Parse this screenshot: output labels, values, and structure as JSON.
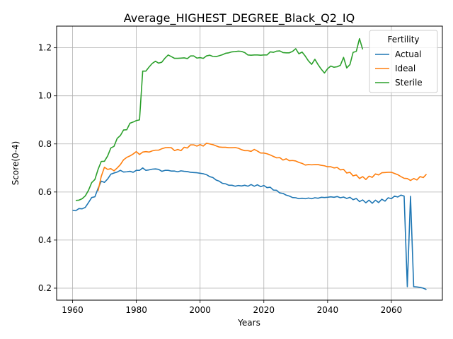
{
  "chart_data": {
    "type": "line",
    "title": "Average_HIGHEST_DEGREE_Black_Q2_IQ",
    "xlabel": "Years",
    "ylabel": "Score(0-4)",
    "xlim": [
      1955,
      2076
    ],
    "ylim": [
      0.15,
      1.29
    ],
    "x_ticks": [
      1960,
      1980,
      2000,
      2020,
      2040,
      2060
    ],
    "y_ticks": [
      0.2,
      0.4,
      0.6,
      0.8,
      1.0,
      1.2
    ],
    "x_tick_labels": [
      "1960",
      "1980",
      "2000",
      "2020",
      "2040",
      "2060"
    ],
    "y_tick_labels": [
      "0.2",
      "0.4",
      "0.6",
      "0.8",
      "1.0",
      "1.2"
    ],
    "grid": true,
    "legend": {
      "title": "Fertility",
      "placement": "upper right"
    },
    "series": [
      {
        "name": "Actual",
        "color": "#1f77b4",
        "points": [
          [
            1960,
            0.524
          ],
          [
            1961,
            0.522
          ],
          [
            1962,
            0.531
          ],
          [
            1963,
            0.53
          ],
          [
            1964,
            0.536
          ],
          [
            1965,
            0.556
          ],
          [
            1966,
            0.577
          ],
          [
            1967,
            0.58
          ],
          [
            1968,
            0.615
          ],
          [
            1969,
            0.645
          ],
          [
            1970,
            0.64
          ],
          [
            1971,
            0.654
          ],
          [
            1972,
            0.674
          ],
          [
            1973,
            0.679
          ],
          [
            1974,
            0.683
          ],
          [
            1975,
            0.69
          ],
          [
            1976,
            0.683
          ],
          [
            1977,
            0.684
          ],
          [
            1978,
            0.686
          ],
          [
            1979,
            0.682
          ],
          [
            1980,
            0.69
          ],
          [
            1981,
            0.69
          ],
          [
            1982,
            0.7
          ],
          [
            1983,
            0.69
          ],
          [
            1984,
            0.692
          ],
          [
            1985,
            0.695
          ],
          [
            1986,
            0.696
          ],
          [
            1987,
            0.694
          ],
          [
            1988,
            0.686
          ],
          [
            1989,
            0.69
          ],
          [
            1990,
            0.69
          ],
          [
            1991,
            0.687
          ],
          [
            1992,
            0.687
          ],
          [
            1993,
            0.684
          ],
          [
            1994,
            0.688
          ],
          [
            1995,
            0.686
          ],
          [
            1996,
            0.685
          ],
          [
            1997,
            0.682
          ],
          [
            1998,
            0.681
          ],
          [
            1999,
            0.68
          ],
          [
            2000,
            0.678
          ],
          [
            2001,
            0.676
          ],
          [
            2002,
            0.672
          ],
          [
            2003,
            0.664
          ],
          [
            2004,
            0.66
          ],
          [
            2005,
            0.65
          ],
          [
            2006,
            0.645
          ],
          [
            2007,
            0.636
          ],
          [
            2008,
            0.634
          ],
          [
            2009,
            0.628
          ],
          [
            2010,
            0.628
          ],
          [
            2011,
            0.624
          ],
          [
            2012,
            0.627
          ],
          [
            2013,
            0.625
          ],
          [
            2014,
            0.628
          ],
          [
            2015,
            0.624
          ],
          [
            2016,
            0.631
          ],
          [
            2017,
            0.624
          ],
          [
            2018,
            0.63
          ],
          [
            2019,
            0.622
          ],
          [
            2020,
            0.627
          ],
          [
            2021,
            0.618
          ],
          [
            2022,
            0.62
          ],
          [
            2023,
            0.608
          ],
          [
            2024,
            0.607
          ],
          [
            2025,
            0.596
          ],
          [
            2026,
            0.594
          ],
          [
            2027,
            0.587
          ],
          [
            2028,
            0.583
          ],
          [
            2029,
            0.577
          ],
          [
            2030,
            0.576
          ],
          [
            2031,
            0.572
          ],
          [
            2032,
            0.574
          ],
          [
            2033,
            0.572
          ],
          [
            2034,
            0.575
          ],
          [
            2035,
            0.572
          ],
          [
            2036,
            0.576
          ],
          [
            2037,
            0.574
          ],
          [
            2038,
            0.578
          ],
          [
            2039,
            0.577
          ],
          [
            2040,
            0.578
          ],
          [
            2041,
            0.58
          ],
          [
            2042,
            0.578
          ],
          [
            2043,
            0.581
          ],
          [
            2044,
            0.576
          ],
          [
            2045,
            0.579
          ],
          [
            2046,
            0.573
          ],
          [
            2047,
            0.578
          ],
          [
            2048,
            0.568
          ],
          [
            2049,
            0.573
          ],
          [
            2050,
            0.56
          ],
          [
            2051,
            0.567
          ],
          [
            2052,
            0.555
          ],
          [
            2053,
            0.566
          ],
          [
            2054,
            0.553
          ],
          [
            2055,
            0.566
          ],
          [
            2056,
            0.556
          ],
          [
            2057,
            0.57
          ],
          [
            2058,
            0.562
          ],
          [
            2059,
            0.576
          ],
          [
            2060,
            0.572
          ],
          [
            2061,
            0.583
          ],
          [
            2062,
            0.579
          ],
          [
            2063,
            0.587
          ],
          [
            2064,
            0.583
          ],
          [
            2065,
            0.206
          ],
          [
            2066,
            0.582
          ],
          [
            2067,
            0.206
          ],
          [
            2068,
            0.205
          ],
          [
            2069,
            0.203
          ],
          [
            2070,
            0.2
          ],
          [
            2071,
            0.194
          ]
        ]
      },
      {
        "name": "Ideal",
        "color": "#ff7f0e",
        "points": [
          [
            1968,
            0.605
          ],
          [
            1969,
            0.665
          ],
          [
            1970,
            0.703
          ],
          [
            1971,
            0.694
          ],
          [
            1972,
            0.697
          ],
          [
            1973,
            0.688
          ],
          [
            1974,
            0.7
          ],
          [
            1975,
            0.714
          ],
          [
            1976,
            0.734
          ],
          [
            1977,
            0.744
          ],
          [
            1978,
            0.75
          ],
          [
            1979,
            0.758
          ],
          [
            1980,
            0.768
          ],
          [
            1981,
            0.756
          ],
          [
            1982,
            0.766
          ],
          [
            1983,
            0.768
          ],
          [
            1984,
            0.766
          ],
          [
            1985,
            0.771
          ],
          [
            1986,
            0.774
          ],
          [
            1987,
            0.774
          ],
          [
            1988,
            0.78
          ],
          [
            1989,
            0.784
          ],
          [
            1990,
            0.785
          ],
          [
            1991,
            0.784
          ],
          [
            1992,
            0.772
          ],
          [
            1993,
            0.777
          ],
          [
            1994,
            0.772
          ],
          [
            1995,
            0.786
          ],
          [
            1996,
            0.783
          ],
          [
            1997,
            0.796
          ],
          [
            1998,
            0.796
          ],
          [
            1999,
            0.791
          ],
          [
            2000,
            0.797
          ],
          [
            2001,
            0.791
          ],
          [
            2002,
            0.803
          ],
          [
            2003,
            0.8
          ],
          [
            2004,
            0.797
          ],
          [
            2005,
            0.792
          ],
          [
            2006,
            0.787
          ],
          [
            2007,
            0.786
          ],
          [
            2008,
            0.786
          ],
          [
            2009,
            0.784
          ],
          [
            2010,
            0.784
          ],
          [
            2011,
            0.785
          ],
          [
            2012,
            0.782
          ],
          [
            2013,
            0.776
          ],
          [
            2014,
            0.772
          ],
          [
            2015,
            0.772
          ],
          [
            2016,
            0.769
          ],
          [
            2017,
            0.777
          ],
          [
            2018,
            0.77
          ],
          [
            2019,
            0.762
          ],
          [
            2020,
            0.762
          ],
          [
            2021,
            0.759
          ],
          [
            2022,
            0.754
          ],
          [
            2023,
            0.748
          ],
          [
            2024,
            0.742
          ],
          [
            2025,
            0.743
          ],
          [
            2026,
            0.733
          ],
          [
            2027,
            0.738
          ],
          [
            2028,
            0.73
          ],
          [
            2029,
            0.731
          ],
          [
            2030,
            0.729
          ],
          [
            2031,
            0.723
          ],
          [
            2032,
            0.719
          ],
          [
            2033,
            0.712
          ],
          [
            2034,
            0.714
          ],
          [
            2035,
            0.713
          ],
          [
            2036,
            0.714
          ],
          [
            2037,
            0.714
          ],
          [
            2038,
            0.711
          ],
          [
            2039,
            0.709
          ],
          [
            2040,
            0.705
          ],
          [
            2041,
            0.705
          ],
          [
            2042,
            0.7
          ],
          [
            2043,
            0.702
          ],
          [
            2044,
            0.692
          ],
          [
            2045,
            0.694
          ],
          [
            2046,
            0.679
          ],
          [
            2047,
            0.682
          ],
          [
            2048,
            0.667
          ],
          [
            2049,
            0.671
          ],
          [
            2050,
            0.656
          ],
          [
            2051,
            0.664
          ],
          [
            2052,
            0.652
          ],
          [
            2053,
            0.666
          ],
          [
            2054,
            0.661
          ],
          [
            2055,
            0.675
          ],
          [
            2056,
            0.671
          ],
          [
            2057,
            0.68
          ],
          [
            2058,
            0.681
          ],
          [
            2059,
            0.682
          ],
          [
            2060,
            0.682
          ],
          [
            2061,
            0.677
          ],
          [
            2062,
            0.672
          ],
          [
            2063,
            0.664
          ],
          [
            2064,
            0.657
          ],
          [
            2065,
            0.656
          ],
          [
            2066,
            0.648
          ],
          [
            2067,
            0.656
          ],
          [
            2068,
            0.65
          ],
          [
            2069,
            0.664
          ],
          [
            2070,
            0.66
          ],
          [
            2071,
            0.674
          ]
        ]
      },
      {
        "name": "Sterile",
        "color": "#2ca02c",
        "points": [
          [
            1961,
            0.565
          ],
          [
            1962,
            0.566
          ],
          [
            1963,
            0.572
          ],
          [
            1964,
            0.584
          ],
          [
            1965,
            0.607
          ],
          [
            1966,
            0.639
          ],
          [
            1967,
            0.652
          ],
          [
            1968,
            0.694
          ],
          [
            1969,
            0.727
          ],
          [
            1970,
            0.728
          ],
          [
            1971,
            0.75
          ],
          [
            1972,
            0.783
          ],
          [
            1973,
            0.79
          ],
          [
            1974,
            0.823
          ],
          [
            1975,
            0.835
          ],
          [
            1976,
            0.858
          ],
          [
            1977,
            0.859
          ],
          [
            1978,
            0.886
          ],
          [
            1979,
            0.891
          ],
          [
            1980,
            0.897
          ],
          [
            1981,
            0.9
          ],
          [
            1982,
            1.103
          ],
          [
            1983,
            1.103
          ],
          [
            1984,
            1.12
          ],
          [
            1985,
            1.135
          ],
          [
            1986,
            1.144
          ],
          [
            1987,
            1.136
          ],
          [
            1988,
            1.14
          ],
          [
            1989,
            1.157
          ],
          [
            1990,
            1.17
          ],
          [
            1991,
            1.163
          ],
          [
            1992,
            1.156
          ],
          [
            1993,
            1.156
          ],
          [
            1994,
            1.157
          ],
          [
            1995,
            1.158
          ],
          [
            1996,
            1.155
          ],
          [
            1997,
            1.166
          ],
          [
            1998,
            1.166
          ],
          [
            1999,
            1.157
          ],
          [
            2000,
            1.159
          ],
          [
            2001,
            1.156
          ],
          [
            2002,
            1.166
          ],
          [
            2003,
            1.169
          ],
          [
            2004,
            1.164
          ],
          [
            2005,
            1.163
          ],
          [
            2006,
            1.167
          ],
          [
            2007,
            1.171
          ],
          [
            2008,
            1.177
          ],
          [
            2009,
            1.179
          ],
          [
            2010,
            1.183
          ],
          [
            2011,
            1.184
          ],
          [
            2012,
            1.186
          ],
          [
            2013,
            1.185
          ],
          [
            2014,
            1.18
          ],
          [
            2015,
            1.17
          ],
          [
            2016,
            1.169
          ],
          [
            2017,
            1.17
          ],
          [
            2018,
            1.17
          ],
          [
            2019,
            1.169
          ],
          [
            2020,
            1.17
          ],
          [
            2021,
            1.17
          ],
          [
            2022,
            1.183
          ],
          [
            2023,
            1.181
          ],
          [
            2024,
            1.186
          ],
          [
            2025,
            1.187
          ],
          [
            2026,
            1.18
          ],
          [
            2027,
            1.179
          ],
          [
            2028,
            1.179
          ],
          [
            2029,
            1.185
          ],
          [
            2030,
            1.196
          ],
          [
            2031,
            1.175
          ],
          [
            2032,
            1.182
          ],
          [
            2033,
            1.165
          ],
          [
            2034,
            1.145
          ],
          [
            2035,
            1.131
          ],
          [
            2036,
            1.152
          ],
          [
            2037,
            1.13
          ],
          [
            2038,
            1.111
          ],
          [
            2039,
            1.095
          ],
          [
            2040,
            1.113
          ],
          [
            2041,
            1.124
          ],
          [
            2042,
            1.119
          ],
          [
            2043,
            1.121
          ],
          [
            2044,
            1.127
          ],
          [
            2045,
            1.16
          ],
          [
            2046,
            1.116
          ],
          [
            2047,
            1.13
          ],
          [
            2048,
            1.181
          ],
          [
            2049,
            1.185
          ],
          [
            2050,
            1.238
          ],
          [
            2051,
            1.193
          ]
        ]
      }
    ]
  }
}
